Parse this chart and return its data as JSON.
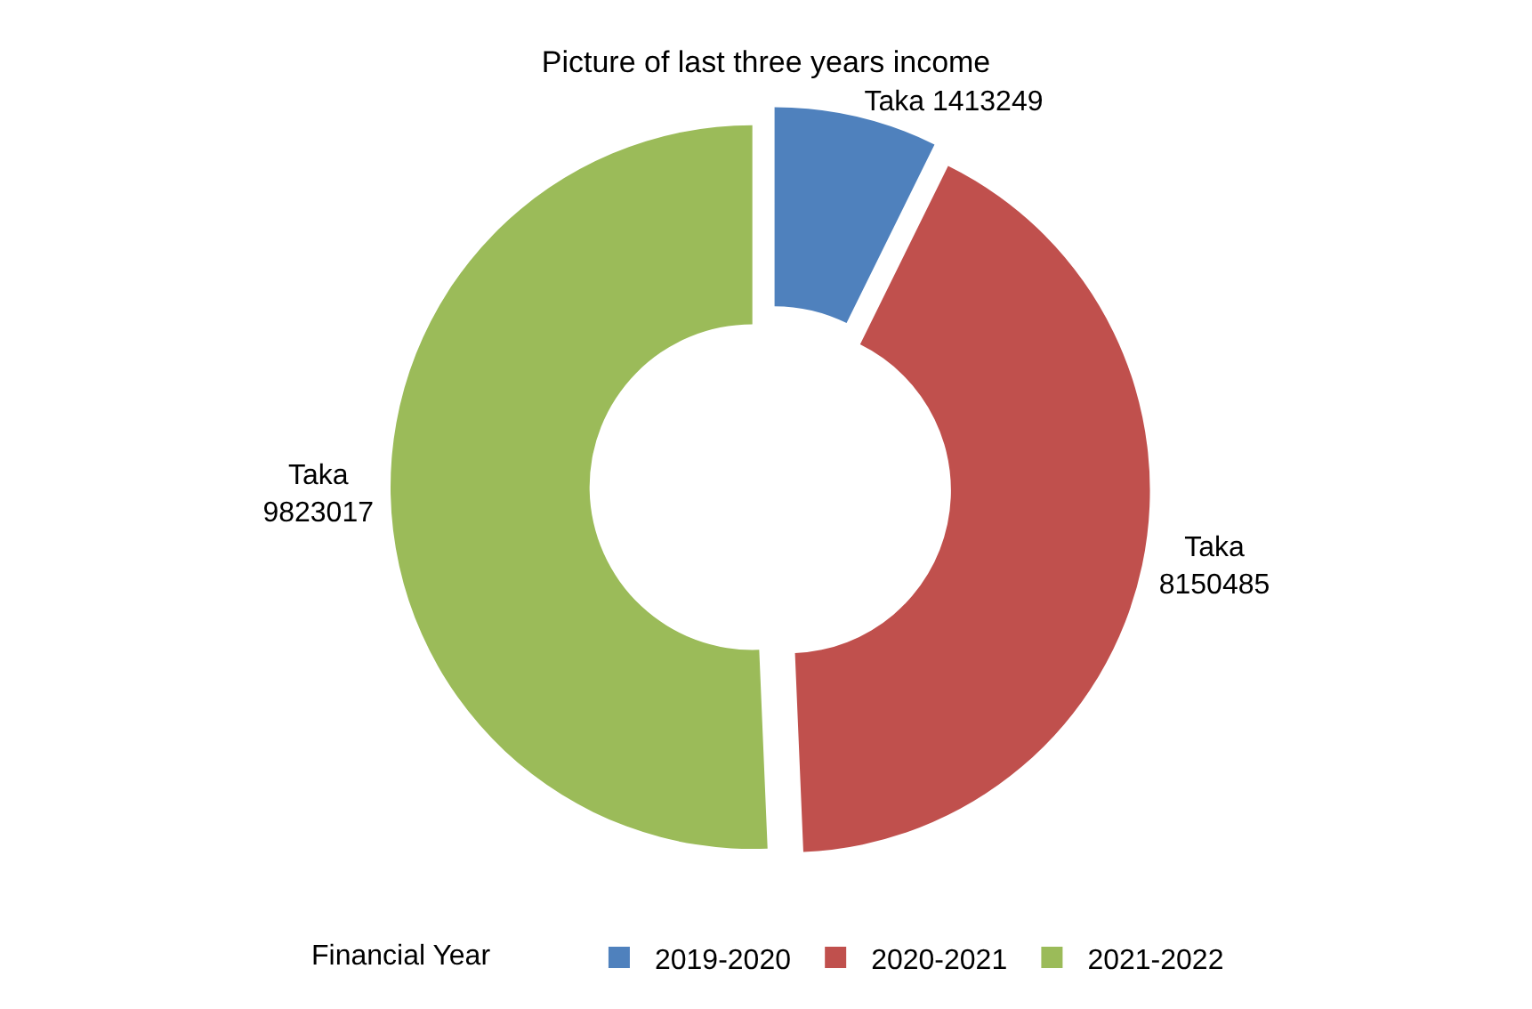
{
  "chart_data": {
    "type": "donut",
    "title": "Picture of last three years income",
    "categories": [
      "2019-2020",
      "2020-2021",
      "2021-2022"
    ],
    "values": [
      1413249,
      8150485,
      9823017
    ],
    "colors": [
      "#4f81bd",
      "#c0504d",
      "#9bbb59"
    ],
    "value_labels": [
      "Taka 1413249",
      "Taka\n8150485",
      "Taka\n9823017"
    ],
    "legend": "bottom",
    "legend_title": "Financial Year"
  }
}
